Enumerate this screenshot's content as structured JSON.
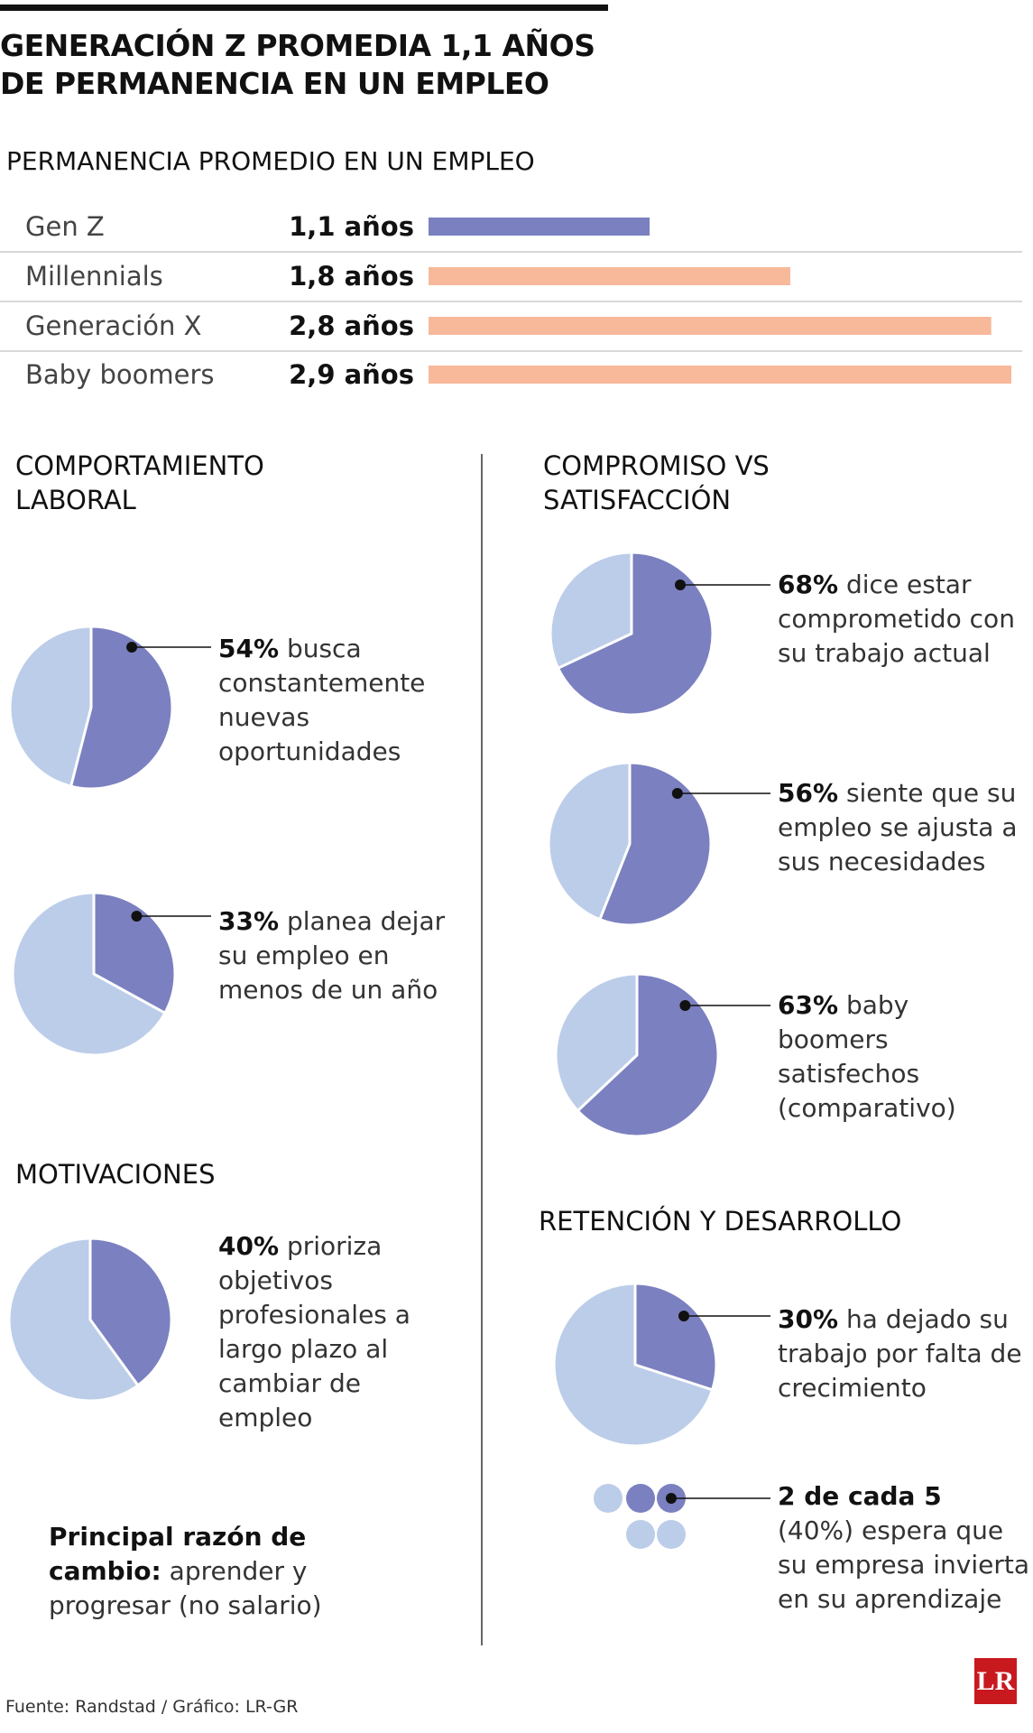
{
  "header": {
    "title": "GENERACIÓN Z PROMEDIA 1,1 AÑOS DE PERMANENCIA EN UN EMPLEO"
  },
  "bars": {
    "type": "bar",
    "title": "PERMANENCIA PROMEDIO EN UN EMPLEO",
    "categories": [
      "Gen Z",
      "Millennials",
      "Generación X",
      "Baby boomers"
    ],
    "values": [
      1.1,
      1.8,
      2.8,
      2.9
    ],
    "value_labels": [
      "1,1 años",
      "1,8 años",
      "2,8 años",
      "2,9 años"
    ],
    "colors": [
      "#7b80c0",
      "#f7b99a",
      "#f7b99a",
      "#f7b99a"
    ]
  },
  "pie_colors": {
    "value": "#7b80c0",
    "rest": "#bccde9"
  },
  "sections": [
    {
      "title": "COMPORTAMIENTO LABORAL",
      "items": [
        {
          "type": "pie",
          "value": 54,
          "value_label": "54%",
          "text": "busca constantemente nuevas oportunidades"
        },
        {
          "type": "pie",
          "value": 33,
          "value_label": "33%",
          "text": "planea dejar su empleo en menos de un año"
        }
      ]
    },
    {
      "title": "MOTIVACIONES",
      "items": [
        {
          "type": "pie",
          "value": 40,
          "value_label": "40%",
          "text": "prioriza objetivos profesionales a largo plazo al cambiar de empleo"
        }
      ]
    },
    {
      "title": "COMPROMISO VS SATISFACCIÓN",
      "items": [
        {
          "type": "pie",
          "value": 68,
          "value_label": "68%",
          "text": "dice estar comprometido con su trabajo actual"
        },
        {
          "type": "pie",
          "value": 56,
          "value_label": "56%",
          "text": "siente que su empleo se ajusta a sus necesidades"
        },
        {
          "type": "pie",
          "value": 63,
          "value_label": "63%",
          "text": "baby boomers satisfechos (comparativo)"
        }
      ]
    },
    {
      "title": "RETENCIÓN Y DESARROLLO",
      "items": [
        {
          "type": "pie",
          "value": 30,
          "value_label": "30%",
          "text": "ha dejado su trabajo por falta de crecimiento"
        },
        {
          "type": "dots",
          "highlight": 2,
          "total": 5,
          "value_label": "2 de cada 5",
          "text": "(40%) espera que su empresa invierta en su aprendizaje"
        }
      ]
    }
  ],
  "note": {
    "bold": "Principal razón de cambio:",
    "text": "aprender y progresar (no salario)"
  },
  "footer": {
    "source": "Fuente: Randstad / Gráfico: LR-GR",
    "logo": "LR"
  }
}
